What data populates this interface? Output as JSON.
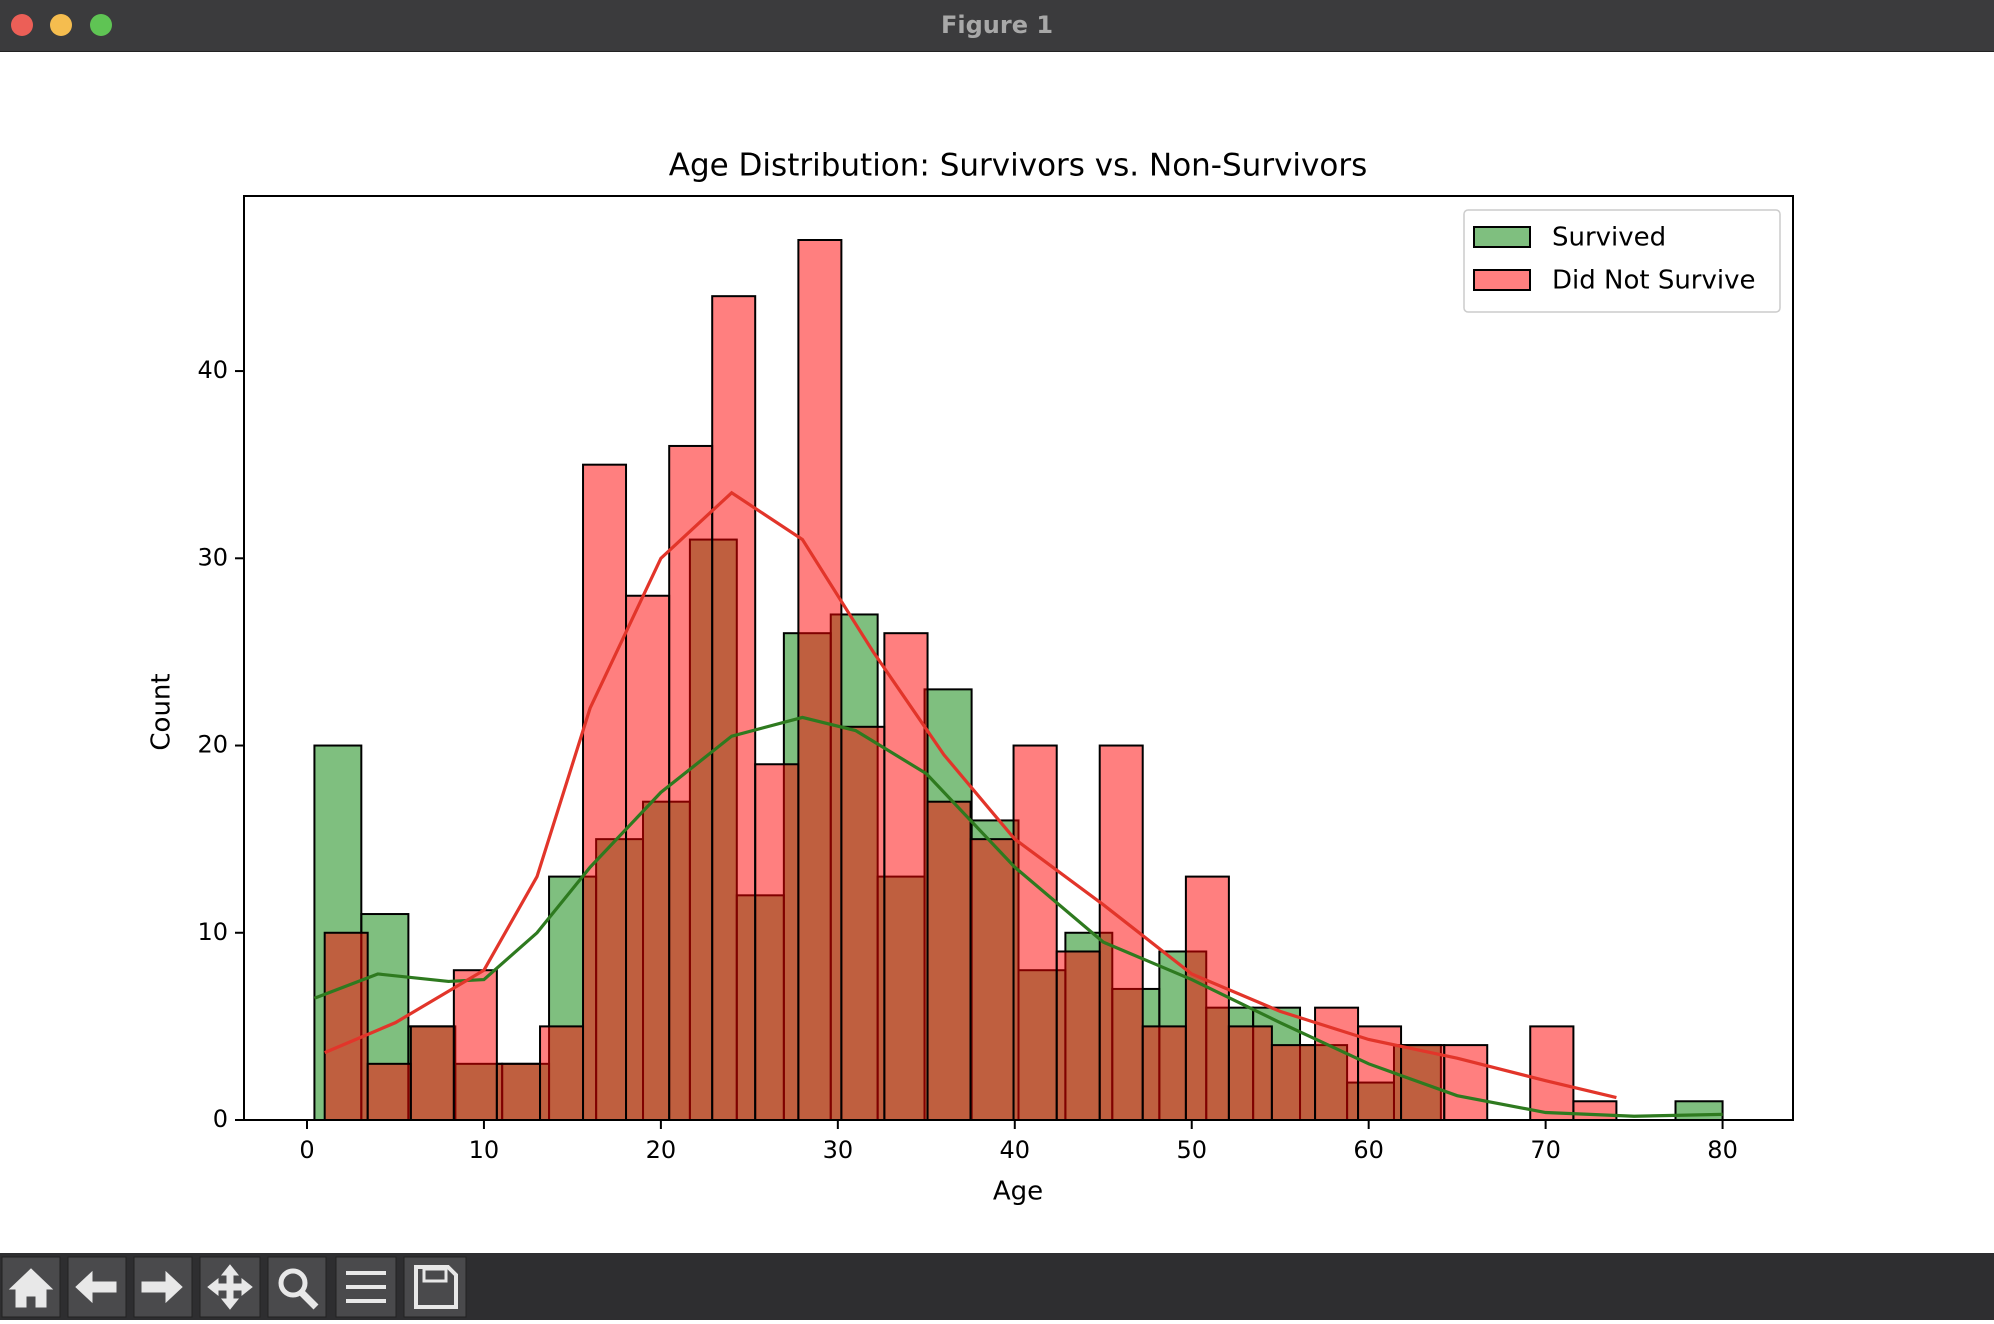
{
  "window": {
    "title": "Figure 1"
  },
  "chart_data": {
    "type": "histogram",
    "title": "Age Distribution: Survivors vs. Non-Survivors",
    "xlabel": "Age",
    "ylabel": "Count",
    "xlim": [
      -3.56,
      83.98
    ],
    "ylim": [
      0,
      49.35
    ],
    "xticks": [
      0,
      10,
      20,
      30,
      40,
      50,
      60,
      70,
      80
    ],
    "yticks": [
      0,
      10,
      20,
      30,
      40
    ],
    "grid": false,
    "legend": "upper right",
    "alpha": 0.5,
    "series": [
      {
        "name": "Survived",
        "color": "#008000",
        "line_color": "#2e7a1f",
        "bins": [
          0.42,
          3.07,
          5.73,
          8.38,
          11.03,
          13.68,
          16.34,
          18.99,
          21.64,
          24.29,
          26.95,
          29.6,
          32.25,
          34.9,
          37.56,
          40.21,
          42.86,
          45.51,
          48.17,
          50.82,
          53.47,
          56.12,
          58.78,
          61.43,
          64.08,
          66.73,
          69.39,
          72.04,
          74.69,
          77.34,
          80
        ],
        "values": [
          20,
          11,
          5,
          3,
          3,
          13,
          15,
          17,
          31,
          12,
          26,
          27,
          13,
          23,
          16,
          8,
          10,
          7,
          9,
          6,
          6,
          4,
          2,
          4,
          0,
          0,
          0,
          0,
          0,
          1
        ],
        "kde": {
          "x": [
            0.42,
            4,
            8,
            10,
            13,
            16,
            20,
            24,
            28,
            31,
            35,
            40,
            45,
            50,
            55,
            60,
            65,
            70,
            75,
            80
          ],
          "values": [
            6.5,
            7.8,
            7.4,
            7.5,
            10,
            13.5,
            17.5,
            20.5,
            21.5,
            20.8,
            18.5,
            13.5,
            9.5,
            7.5,
            5.2,
            3,
            1.3,
            0.4,
            0.2,
            0.3
          ]
        }
      },
      {
        "name": "Did Not Survive",
        "color": "#ff0000",
        "line_color": "#e2352a",
        "bins": [
          1,
          3.43,
          5.87,
          8.3,
          10.73,
          13.17,
          15.6,
          18.03,
          20.47,
          22.9,
          25.33,
          27.77,
          30.2,
          32.63,
          35.07,
          37.5,
          39.93,
          42.37,
          44.8,
          47.23,
          49.67,
          52.1,
          54.53,
          56.97,
          59.4,
          61.83,
          64.27,
          66.7,
          69.13,
          71.57,
          74
        ],
        "values": [
          10,
          3,
          5,
          8,
          3,
          5,
          35,
          28,
          36,
          44,
          19,
          47,
          21,
          26,
          17,
          15,
          20,
          9,
          20,
          5,
          13,
          5,
          4,
          6,
          5,
          4,
          4,
          0,
          5,
          1
        ],
        "kde": {
          "x": [
            1,
            5,
            10,
            13,
            16,
            20,
            24,
            28,
            32,
            36,
            40,
            45,
            50,
            55,
            60,
            65,
            70,
            74
          ],
          "values": [
            3.6,
            5.2,
            8,
            13,
            22,
            30,
            33.5,
            31,
            25,
            19.5,
            15,
            11.5,
            7.8,
            5.8,
            4.3,
            3.3,
            2.1,
            1.2
          ]
        }
      }
    ]
  }
}
